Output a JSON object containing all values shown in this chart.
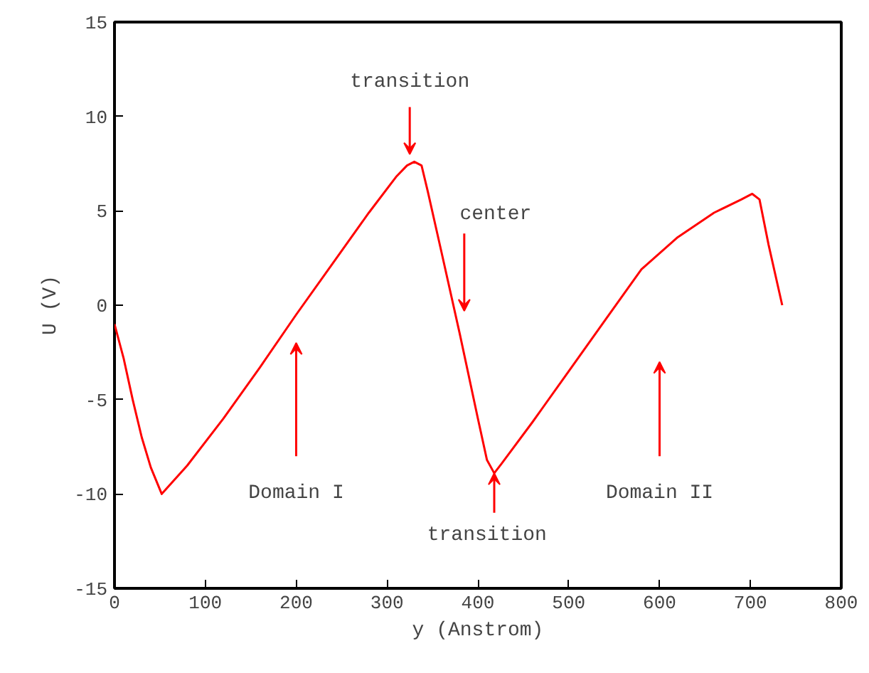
{
  "chart_data": {
    "type": "line",
    "xlabel": "y (Anstrom)",
    "ylabel": "U (V)",
    "x": [
      0,
      10,
      20,
      30,
      40,
      52,
      80,
      120,
      160,
      200,
      240,
      280,
      310,
      322,
      330,
      338,
      345,
      360,
      380,
      400,
      410,
      418,
      426,
      460,
      500,
      540,
      580,
      620,
      660,
      690,
      702,
      710,
      720,
      735
    ],
    "series": [
      {
        "color": "#ff0000",
        "values": [
          -1,
          -2.8,
          -5,
          -7,
          -8.6,
          -10,
          -8.5,
          -6,
          -3.3,
          -0.5,
          2.2,
          4.9,
          6.8,
          7.4,
          7.6,
          7.4,
          6,
          2.8,
          -1.5,
          -6,
          -8.2,
          -8.9,
          -8.4,
          -6.2,
          -3.5,
          -0.8,
          1.9,
          3.6,
          4.9,
          5.6,
          5.9,
          5.6,
          3.2,
          0
        ]
      }
    ],
    "xlim": [
      0,
      800
    ],
    "ylim": [
      -15,
      15
    ],
    "xticks": [
      0,
      100,
      200,
      300,
      400,
      500,
      600,
      700,
      800
    ],
    "yticks": [
      -15,
      -10,
      -5,
      0,
      5,
      10,
      15
    ],
    "grid": false,
    "marker": "none",
    "line_style": "solid",
    "annotations": [
      "transition",
      "center",
      "Domain I",
      {
        "text": "transition",
        "x": 418,
        "y": -8.9
      },
      "Domain II"
    ]
  }
}
